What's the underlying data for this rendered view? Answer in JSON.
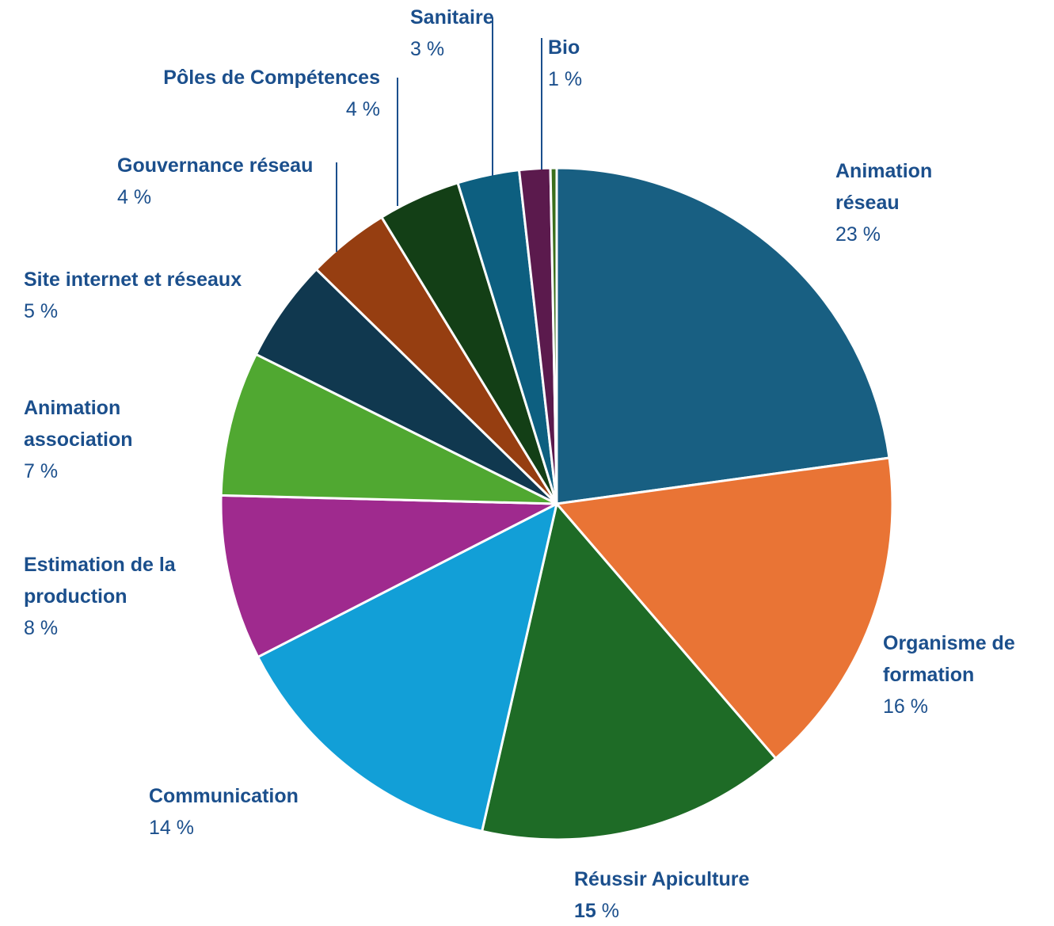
{
  "chart_data": {
    "type": "pie",
    "title": "",
    "label_color": "#1b4f8c",
    "leader_color": "#1b4f8c",
    "slice_border_color": "#ffffff",
    "slices": [
      {
        "name": "Animation réseau",
        "label_lines": [
          "Animation",
          "réseau"
        ],
        "value": 23,
        "value_label": "23 %",
        "color": "#185f82"
      },
      {
        "name": "Organisme de formation",
        "label_lines": [
          "Organisme de",
          "formation"
        ],
        "value": 16,
        "value_label": "16 %",
        "color": "#e97435"
      },
      {
        "name": "Réussir Apiculture",
        "label_lines": [
          "Réussir Apiculture"
        ],
        "value": 15,
        "value_label": "15 %",
        "color": "#1e6b26"
      },
      {
        "name": "Communication",
        "label_lines": [
          "Communication"
        ],
        "value": 14,
        "value_label": "14 %",
        "color": "#129fd7"
      },
      {
        "name": "Estimation de la production",
        "label_lines": [
          "Estimation de la",
          "production"
        ],
        "value": 8,
        "value_label": "8 %",
        "color": "#9f2a8e"
      },
      {
        "name": "Animation association",
        "label_lines": [
          "Animation",
          "association"
        ],
        "value": 7,
        "value_label": "7 %",
        "color": "#50a831"
      },
      {
        "name": "Site internet et réseaux",
        "label_lines": [
          "Site internet et réseaux"
        ],
        "value": 5,
        "value_label": "5 %",
        "color": "#10384f"
      },
      {
        "name": "Gouvernance réseau",
        "label_lines": [
          "Gouvernance réseau"
        ],
        "value": 4,
        "value_label": "4 %",
        "color": "#963e11"
      },
      {
        "name": "Pôles de Compétences",
        "label_lines": [
          "Pôles de Compétences"
        ],
        "value": 4,
        "value_label": "4 %",
        "color": "#133f16"
      },
      {
        "name": "Sanitaire",
        "label_lines": [
          "Sanitaire"
        ],
        "value": 3,
        "value_label": "3 %",
        "color": "#0d5f80"
      },
      {
        "name": "Bio",
        "label_lines": [
          "Bio"
        ],
        "value": 1.5,
        "value_label": "1 %",
        "color": "#5b1a4d"
      },
      {
        "name": "",
        "label_lines": [],
        "value": 0.3,
        "value_label": "",
        "color": "#3b6f1c"
      }
    ]
  }
}
